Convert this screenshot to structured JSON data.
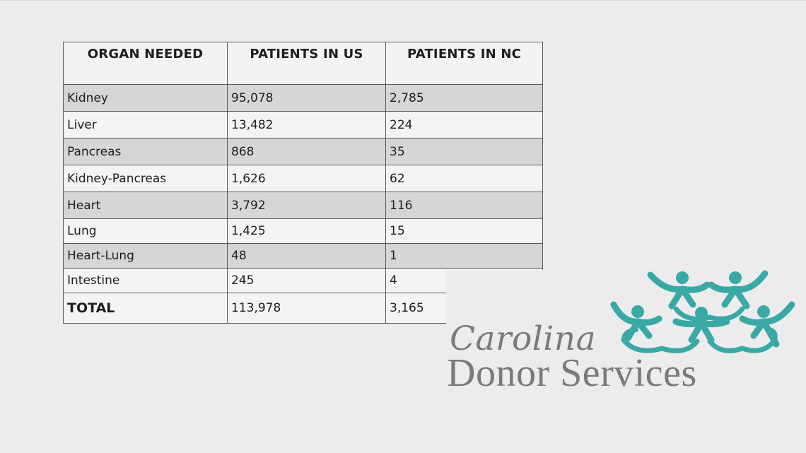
{
  "table": {
    "headers": [
      "ORGAN NEEDED",
      "PATIENTS IN US",
      "PATIENTS IN NC"
    ],
    "rows": [
      [
        "Kidney",
        "95,078",
        "2,785"
      ],
      [
        "Liver",
        "13,482",
        "224"
      ],
      [
        "Pancreas",
        "868",
        "35"
      ],
      [
        "Kidney-Pancreas",
        "1,626",
        "62"
      ],
      [
        "Heart",
        "3,792",
        "116"
      ],
      [
        "Lung",
        "1,425",
        "15"
      ],
      [
        "Heart-Lung",
        "48",
        "1"
      ],
      [
        "Intestine",
        "245",
        "4"
      ]
    ],
    "total": [
      "TOTAL",
      "113,978",
      "3,165"
    ]
  },
  "logo": {
    "line1": "Carolina",
    "line2": "Donor Services",
    "accent_color": "#3aa9a6",
    "text_color": "#7a7a7a"
  }
}
